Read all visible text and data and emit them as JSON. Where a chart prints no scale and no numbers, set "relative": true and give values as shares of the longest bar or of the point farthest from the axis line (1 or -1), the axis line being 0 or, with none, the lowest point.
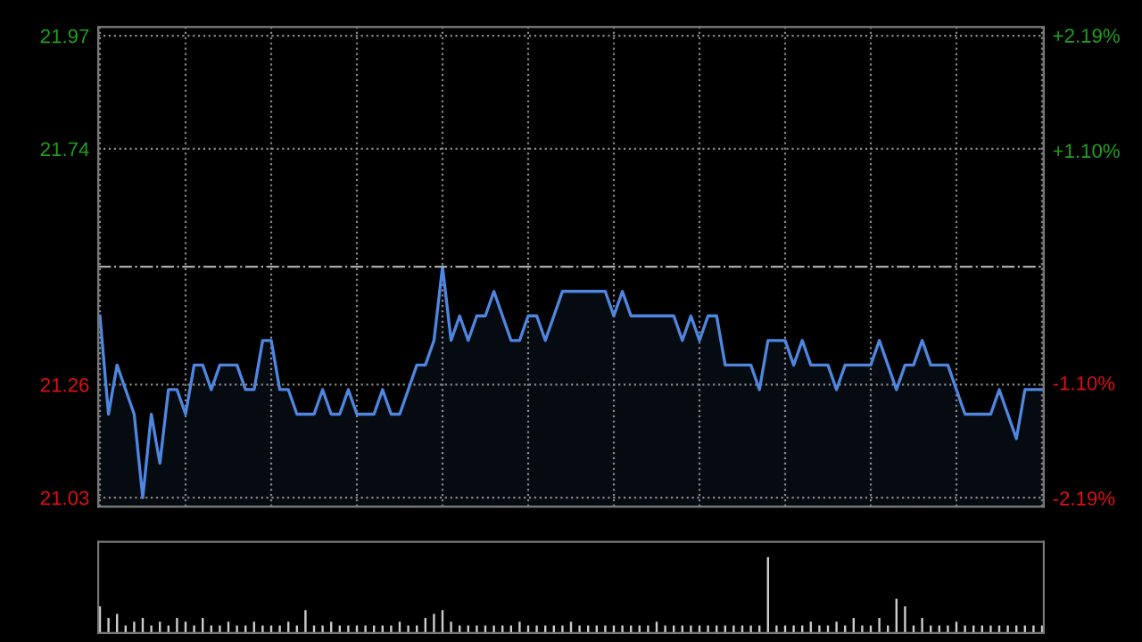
{
  "chart_data": [
    {
      "type": "area",
      "categories": [
        null,
        null,
        null,
        null,
        null,
        null,
        null,
        null,
        null,
        null,
        null,
        null,
        null,
        null,
        null,
        null,
        null,
        null,
        null,
        null,
        null,
        null,
        null,
        null,
        null,
        null,
        null,
        null,
        null,
        null,
        null,
        null,
        null,
        null,
        null,
        null,
        null,
        null,
        null,
        null,
        null,
        null,
        null,
        null,
        null,
        null,
        null,
        null,
        null,
        null,
        null,
        null,
        null,
        null,
        null,
        null,
        null,
        null,
        null,
        null,
        null,
        null,
        null,
        null,
        null,
        null,
        null,
        null,
        null,
        null,
        null,
        null,
        null,
        null,
        null,
        null,
        null,
        null,
        null,
        null,
        null,
        null,
        null,
        null,
        null,
        null,
        null,
        null,
        null,
        null,
        null,
        null,
        null,
        null,
        null,
        null,
        null,
        null,
        null,
        null,
        null,
        null,
        null,
        null,
        null,
        null,
        null,
        null,
        null,
        null,
        null
      ],
      "series": [
        {
          "color": "#4f86e0",
          "values": [
            21.4,
            21.2,
            21.3,
            21.25,
            21.2,
            21.03,
            21.2,
            21.1,
            21.25,
            21.25,
            21.2,
            21.3,
            21.3,
            21.25,
            21.3,
            21.3,
            21.3,
            21.25,
            21.25,
            21.35,
            21.35,
            21.25,
            21.25,
            21.2,
            21.2,
            21.2,
            21.25,
            21.2,
            21.2,
            21.25,
            21.2,
            21.2,
            21.2,
            21.25,
            21.2,
            21.2,
            21.25,
            21.3,
            21.3,
            21.35,
            21.5,
            21.35,
            21.4,
            21.35,
            21.4,
            21.4,
            21.45,
            21.4,
            21.35,
            21.35,
            21.4,
            21.4,
            21.35,
            21.4,
            21.45,
            21.45,
            21.45,
            21.45,
            21.45,
            21.45,
            21.4,
            21.45,
            21.4,
            21.4,
            21.4,
            21.4,
            21.4,
            21.4,
            21.35,
            21.4,
            21.35,
            21.4,
            21.4,
            21.3,
            21.3,
            21.3,
            21.3,
            21.25,
            21.35,
            21.35,
            21.35,
            21.3,
            21.35,
            21.3,
            21.3,
            21.3,
            21.25,
            21.3,
            21.3,
            21.3,
            21.3,
            21.35,
            21.3,
            21.25,
            21.3,
            21.3,
            21.35,
            21.3,
            21.3,
            21.3,
            21.25,
            21.2,
            21.2,
            21.2,
            21.2,
            21.25,
            21.2,
            21.15,
            21.25,
            21.25,
            21.25
          ]
        }
      ],
      "ylim": [
        21.012,
        21.988
      ],
      "yticks": [
        21.03,
        21.26,
        21.74,
        21.97
      ],
      "y2lim": [
        -2.27,
        2.27
      ],
      "y2ticks": [
        {
          "value": -2.19,
          "label": "-2.19%"
        },
        {
          "value": -1.1,
          "label": "-1.10%"
        },
        {
          "value": 1.1,
          "label": "+1.10%"
        },
        {
          "value": 2.19,
          "label": "+2.19%"
        }
      ],
      "ref_lines": [
        {
          "axis": "y",
          "value": 21.5,
          "color": "#aaaaaa",
          "line_style": "dashdot"
        }
      ],
      "grid": true,
      "tick_labels": "y"
    },
    {
      "type": "bar",
      "relative": true,
      "tick_labels": false,
      "categories": [
        null,
        null,
        null,
        null,
        null,
        null,
        null,
        null,
        null,
        null,
        null,
        null,
        null,
        null,
        null,
        null,
        null,
        null,
        null,
        null,
        null,
        null,
        null,
        null,
        null,
        null,
        null,
        null,
        null,
        null,
        null,
        null,
        null,
        null,
        null,
        null,
        null,
        null,
        null,
        null,
        null,
        null,
        null,
        null,
        null,
        null,
        null,
        null,
        null,
        null,
        null,
        null,
        null,
        null,
        null,
        null,
        null,
        null,
        null,
        null,
        null,
        null,
        null,
        null,
        null,
        null,
        null,
        null,
        null,
        null,
        null,
        null,
        null,
        null,
        null,
        null,
        null,
        null,
        null,
        null,
        null,
        null,
        null,
        null,
        null,
        null,
        null,
        null,
        null,
        null,
        null,
        null,
        null,
        null,
        null,
        null,
        null,
        null,
        null,
        null,
        null,
        null,
        null,
        null,
        null,
        null,
        null,
        null,
        null,
        null,
        null
      ],
      "series": [
        {
          "color": "#cccccc",
          "values": [
            0.35,
            0.2,
            0.25,
            0.1,
            0.15,
            0.2,
            0.1,
            0.15,
            0.1,
            0.2,
            0.15,
            0.1,
            0.2,
            0.1,
            0.1,
            0.15,
            0.1,
            0.1,
            0.15,
            0.1,
            0.1,
            0.1,
            0.15,
            0.1,
            0.3,
            0.1,
            0.1,
            0.15,
            0.1,
            0.1,
            0.1,
            0.1,
            0.1,
            0.1,
            0.1,
            0.15,
            0.1,
            0.1,
            0.2,
            0.25,
            0.3,
            0.15,
            0.1,
            0.1,
            0.1,
            0.1,
            0.1,
            0.1,
            0.1,
            0.15,
            0.1,
            0.1,
            0.1,
            0.1,
            0.1,
            0.15,
            0.1,
            0.1,
            0.1,
            0.1,
            0.1,
            0.1,
            0.1,
            0.1,
            0.1,
            0.15,
            0.1,
            0.1,
            0.1,
            0.1,
            0.1,
            0.1,
            0.1,
            0.1,
            0.1,
            0.1,
            0.1,
            0.1,
            1.0,
            0.1,
            0.1,
            0.1,
            0.1,
            0.15,
            0.1,
            0.1,
            0.15,
            0.1,
            0.2,
            0.1,
            0.1,
            0.2,
            0.1,
            0.45,
            0.35,
            0.1,
            0.2,
            0.1,
            0.1,
            0.1,
            0.15,
            0.1,
            0.1,
            0.1,
            0.1,
            0.1,
            0.1,
            0.1,
            0.1,
            0.1,
            0.1
          ]
        }
      ]
    }
  ]
}
